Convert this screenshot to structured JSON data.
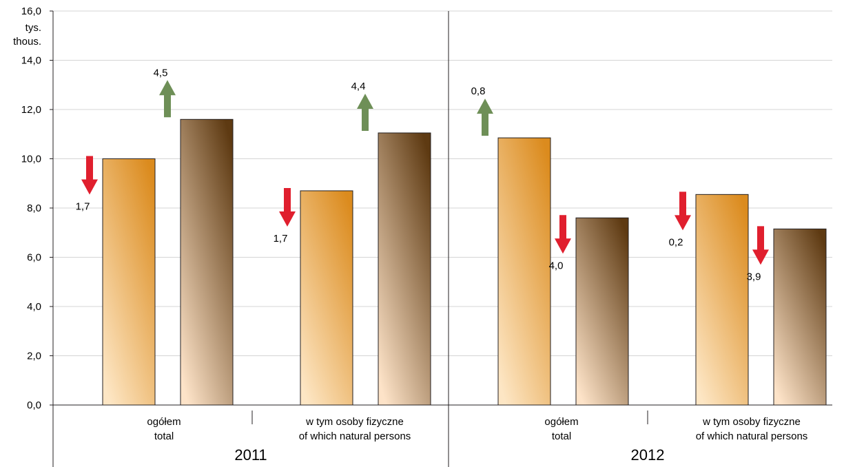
{
  "chart_data": {
    "type": "bar",
    "unit_label": [
      "tys.",
      "thous."
    ],
    "ylim": [
      0,
      16
    ],
    "y_ticks": [
      "0,0",
      "2,0",
      "4,0",
      "6,0",
      "8,0",
      "10,0",
      "12,0",
      "14,0",
      "16,0"
    ],
    "grid": true,
    "years": [
      "2011",
      "2012"
    ],
    "categories": [
      {
        "pl": "ogółem",
        "en": "total"
      },
      {
        "pl": "w tym osoby fizyczne",
        "en": "of which natural persons"
      },
      {
        "pl": "ogółem",
        "en": "total"
      },
      {
        "pl": "w tym osoby fizyczne",
        "en": "of which natural persons"
      }
    ],
    "series": [
      {
        "color_top": "#db8b1e",
        "color_bottom": "#fde6c4",
        "values": [
          10.0,
          8.7,
          10.85,
          8.55
        ],
        "changes": [
          {
            "dir": "down",
            "label": "1,7"
          },
          {
            "dir": "down",
            "label": "1,7"
          },
          {
            "dir": "up",
            "label": "0,8"
          },
          {
            "dir": "down",
            "label": "0,2"
          }
        ]
      },
      {
        "color_top": "#5e3a12",
        "color_bottom": "#fde3c8",
        "values": [
          11.6,
          11.05,
          7.6,
          7.15
        ],
        "changes": [
          {
            "dir": "up",
            "label": "4,5"
          },
          {
            "dir": "up",
            "label": "4,4"
          },
          {
            "dir": "down",
            "label": "4,0"
          },
          {
            "dir": "down",
            "label": "3,9"
          }
        ]
      }
    ],
    "arrow_colors": {
      "up": "#6e8f57",
      "down": "#e01f2e"
    }
  }
}
